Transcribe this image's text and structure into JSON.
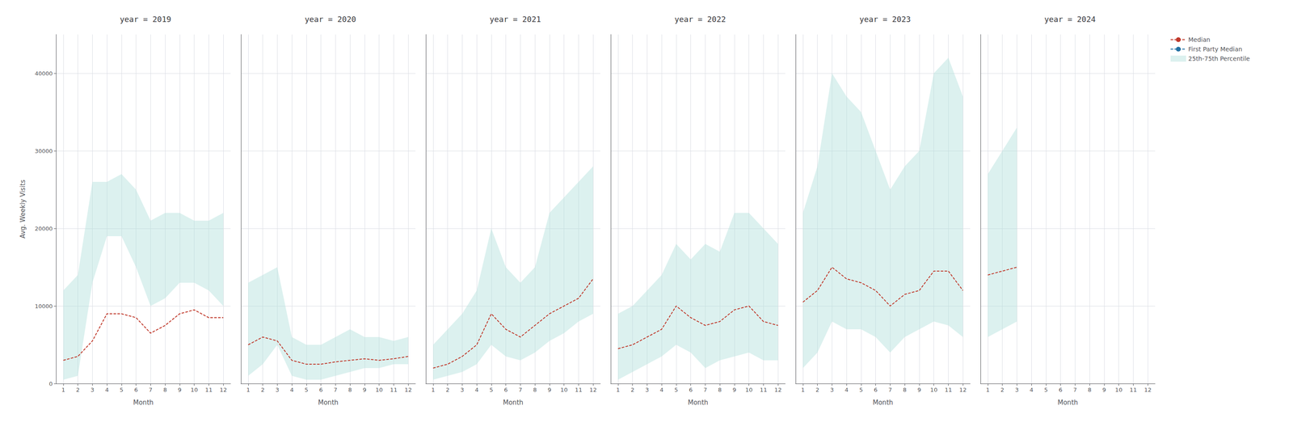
{
  "chart_data": [
    {
      "type": "line",
      "title": "year = 2019",
      "xlabel": "Month",
      "ylabel": "Avg. Weekly Visits",
      "x": [
        1,
        2,
        3,
        4,
        5,
        6,
        7,
        8,
        9,
        10,
        11,
        12
      ],
      "xlim": [
        0.5,
        12.5
      ],
      "xticks": [
        1,
        2,
        3,
        4,
        5,
        6,
        7,
        8,
        9,
        10,
        11,
        12
      ],
      "ylim": [
        0,
        45000
      ],
      "yticks": [
        0,
        10000,
        20000,
        30000,
        40000
      ],
      "grid": true,
      "series": [
        {
          "name": "Median",
          "type": "line",
          "line_style": "dashed",
          "color": "#c0392b",
          "values": [
            3000,
            3500,
            5500,
            9000,
            9000,
            8500,
            6500,
            7500,
            9000,
            9500,
            8500,
            8500
          ]
        },
        {
          "name": "25th-75th Percentile",
          "type": "band",
          "color": "#b2dfdb",
          "low": [
            500,
            1000,
            13000,
            19000,
            19000,
            15000,
            10000,
            11000,
            13000,
            13000,
            12000,
            10000
          ],
          "high": [
            12000,
            14000,
            26000,
            26000,
            27000,
            25000,
            21000,
            22000,
            22000,
            21000,
            21000,
            22000
          ]
        }
      ]
    },
    {
      "type": "line",
      "title": "year = 2020",
      "xlabel": "Month",
      "x": [
        1,
        2,
        3,
        4,
        5,
        6,
        7,
        8,
        9,
        10,
        11,
        12
      ],
      "xlim": [
        0.5,
        12.5
      ],
      "xticks": [
        1,
        2,
        3,
        4,
        5,
        6,
        7,
        8,
        9,
        10,
        11,
        12
      ],
      "ylim": [
        0,
        45000
      ],
      "yticks": [
        0,
        10000,
        20000,
        30000,
        40000
      ],
      "grid": true,
      "tick_labels": "x",
      "series": [
        {
          "name": "Median",
          "type": "line",
          "line_style": "dashed",
          "color": "#c0392b",
          "values": [
            5000,
            6000,
            5500,
            3000,
            2500,
            2500,
            2800,
            3000,
            3200,
            3000,
            3200,
            3500
          ]
        },
        {
          "name": "25th-75th Percentile",
          "type": "band",
          "color": "#b2dfdb",
          "low": [
            1000,
            2500,
            5000,
            1000,
            500,
            500,
            1000,
            1500,
            2000,
            2000,
            2500,
            2500
          ],
          "high": [
            13000,
            14000,
            15000,
            6000,
            5000,
            5000,
            6000,
            7000,
            6000,
            6000,
            5500,
            6000
          ]
        }
      ]
    },
    {
      "type": "line",
      "title": "year = 2021",
      "xlabel": "Month",
      "x": [
        1,
        2,
        3,
        4,
        5,
        6,
        7,
        8,
        9,
        10,
        11,
        12
      ],
      "xlim": [
        0.5,
        12.5
      ],
      "xticks": [
        1,
        2,
        3,
        4,
        5,
        6,
        7,
        8,
        9,
        10,
        11,
        12
      ],
      "ylim": [
        0,
        45000
      ],
      "yticks": [
        0,
        10000,
        20000,
        30000,
        40000
      ],
      "grid": true,
      "tick_labels": "x",
      "series": [
        {
          "name": "Median",
          "type": "line",
          "line_style": "dashed",
          "color": "#c0392b",
          "values": [
            2000,
            2500,
            3500,
            5000,
            9000,
            7000,
            6000,
            7500,
            9000,
            10000,
            11000,
            13500
          ]
        },
        {
          "name": "25th-75th Percentile",
          "type": "band",
          "color": "#b2dfdb",
          "low": [
            500,
            1000,
            1500,
            2500,
            5000,
            3500,
            3000,
            4000,
            5500,
            6500,
            8000,
            9000
          ],
          "high": [
            5000,
            7000,
            9000,
            12000,
            20000,
            15000,
            13000,
            15000,
            22000,
            24000,
            26000,
            28000
          ]
        }
      ]
    },
    {
      "type": "line",
      "title": "year = 2022",
      "xlabel": "Month",
      "x": [
        1,
        2,
        3,
        4,
        5,
        6,
        7,
        8,
        9,
        10,
        11,
        12
      ],
      "xlim": [
        0.5,
        12.5
      ],
      "xticks": [
        1,
        2,
        3,
        4,
        5,
        6,
        7,
        8,
        9,
        10,
        11,
        12
      ],
      "ylim": [
        0,
        45000
      ],
      "yticks": [
        0,
        10000,
        20000,
        30000,
        40000
      ],
      "grid": true,
      "tick_labels": "x",
      "series": [
        {
          "name": "Median",
          "type": "line",
          "line_style": "dashed",
          "color": "#c0392b",
          "values": [
            4500,
            5000,
            6000,
            7000,
            10000,
            8500,
            7500,
            8000,
            9500,
            10000,
            8000,
            7500
          ]
        },
        {
          "name": "25th-75th Percentile",
          "type": "band",
          "color": "#b2dfdb",
          "low": [
            500,
            1500,
            2500,
            3500,
            5000,
            4000,
            2000,
            3000,
            3500,
            4000,
            3000,
            3000
          ],
          "high": [
            9000,
            10000,
            12000,
            14000,
            18000,
            16000,
            18000,
            17000,
            22000,
            22000,
            20000,
            18000
          ]
        }
      ]
    },
    {
      "type": "line",
      "title": "year = 2023",
      "xlabel": "Month",
      "x": [
        1,
        2,
        3,
        4,
        5,
        6,
        7,
        8,
        9,
        10,
        11,
        12
      ],
      "xlim": [
        0.5,
        12.5
      ],
      "xticks": [
        1,
        2,
        3,
        4,
        5,
        6,
        7,
        8,
        9,
        10,
        11,
        12
      ],
      "ylim": [
        0,
        45000
      ],
      "yticks": [
        0,
        10000,
        20000,
        30000,
        40000
      ],
      "grid": true,
      "tick_labels": "x",
      "series": [
        {
          "name": "Median",
          "type": "line",
          "line_style": "dashed",
          "color": "#c0392b",
          "values": [
            10500,
            12000,
            15000,
            13500,
            13000,
            12000,
            10000,
            11500,
            12000,
            14500,
            14500,
            12000
          ]
        },
        {
          "name": "25th-75th Percentile",
          "type": "band",
          "color": "#b2dfdb",
          "low": [
            2000,
            4000,
            8000,
            7000,
            7000,
            6000,
            4000,
            6000,
            7000,
            8000,
            7500,
            6000
          ],
          "high": [
            22000,
            28000,
            40000,
            37000,
            35000,
            30000,
            25000,
            28000,
            30000,
            40000,
            42000,
            37000
          ]
        }
      ]
    },
    {
      "type": "line",
      "title": "year = 2024",
      "xlabel": "Month",
      "x": [
        1,
        2,
        3,
        4,
        5,
        6,
        7,
        8,
        9,
        10,
        11,
        12
      ],
      "xlim": [
        0.5,
        12.5
      ],
      "xticks": [
        1,
        2,
        3,
        4,
        5,
        6,
        7,
        8,
        9,
        10,
        11,
        12
      ],
      "ylim": [
        0,
        45000
      ],
      "yticks": [
        0,
        10000,
        20000,
        30000,
        40000
      ],
      "grid": true,
      "tick_labels": "x",
      "legend": "right",
      "series": [
        {
          "name": "Median",
          "type": "line",
          "line_style": "dashed",
          "color": "#c0392b",
          "values": [
            14000,
            14500,
            15000,
            null,
            null,
            null,
            null,
            null,
            null,
            null,
            null,
            null
          ]
        },
        {
          "name": "First Party Median",
          "type": "line",
          "line_style": "dashed",
          "color": "#2471a3",
          "values": [
            null,
            null,
            null,
            null,
            null,
            null,
            null,
            null,
            null,
            null,
            null,
            null
          ]
        },
        {
          "name": "25th-75th Percentile",
          "type": "band",
          "color": "#b2dfdb",
          "low": [
            6000,
            7000,
            8000,
            null,
            null,
            null,
            null,
            null,
            null,
            null,
            null,
            null
          ],
          "high": [
            27000,
            30000,
            33000,
            null,
            null,
            null,
            null,
            null,
            null,
            null,
            null,
            null
          ]
        }
      ]
    }
  ]
}
